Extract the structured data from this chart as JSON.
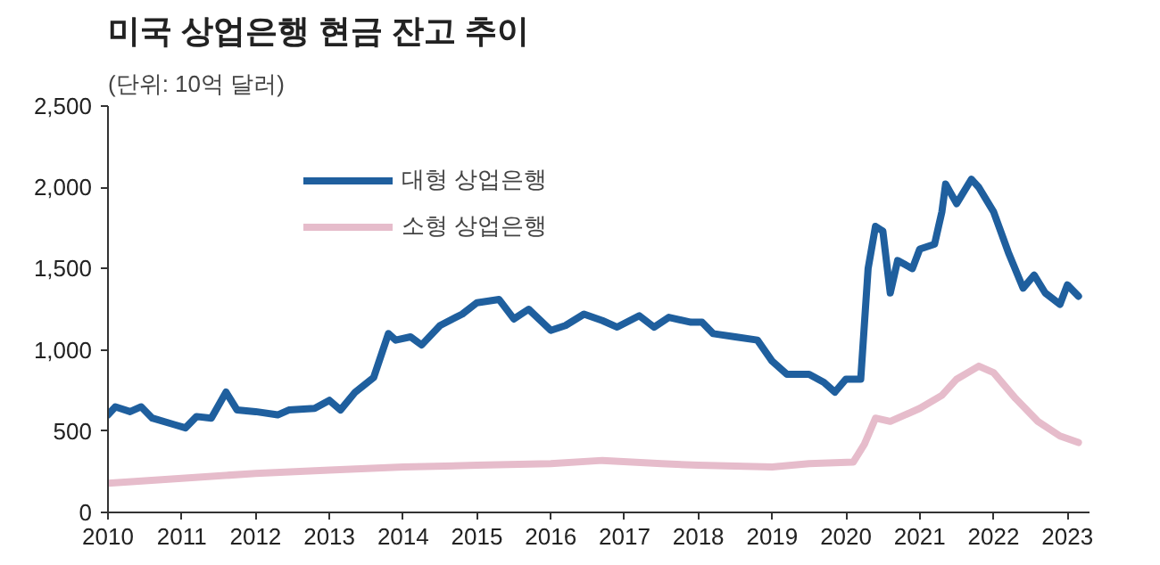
{
  "chart_data": {
    "type": "line",
    "title": "미국 상업은행 현금 잔고 추이",
    "subtitle": "(단위: 10억 달러)",
    "xlim": [
      2010,
      2023.3
    ],
    "xticks": [
      2010,
      2011,
      2012,
      2013,
      2014,
      2015,
      2016,
      2017,
      2018,
      2019,
      2020,
      2021,
      2022,
      2023
    ],
    "ylim": [
      0,
      2500
    ],
    "yticks": [
      0,
      {
        "value": 500,
        "label": "500"
      },
      {
        "value": 1000,
        "label": "1,000"
      },
      {
        "value": 1500,
        "label": "1,500"
      },
      {
        "value": 2000,
        "label": "2,000"
      },
      {
        "value": 2500,
        "label": "2,500"
      }
    ],
    "grid": false,
    "legend": "top left",
    "line_style": "solid",
    "series": [
      {
        "name": "대형 상업은행",
        "color": "#1f5f9e",
        "x": [
          2010.0,
          2010.1,
          2010.3,
          2010.45,
          2010.6,
          2010.9,
          2011.05,
          2011.2,
          2011.4,
          2011.6,
          2011.75,
          2012.0,
          2012.3,
          2012.45,
          2012.8,
          2013.0,
          2013.15,
          2013.35,
          2013.6,
          2013.8,
          2013.9,
          2014.1,
          2014.25,
          2014.5,
          2014.8,
          2015.0,
          2015.3,
          2015.5,
          2015.7,
          2016.0,
          2016.2,
          2016.45,
          2016.7,
          2016.9,
          2017.2,
          2017.4,
          2017.6,
          2017.9,
          2018.05,
          2018.2,
          2018.5,
          2018.8,
          2019.0,
          2019.2,
          2019.5,
          2019.7,
          2019.85,
          2020.0,
          2020.2,
          2020.3,
          2020.4,
          2020.5,
          2020.6,
          2020.7,
          2020.9,
          2021.0,
          2021.2,
          2021.3,
          2021.35,
          2021.5,
          2021.7,
          2021.8,
          2022.0,
          2022.2,
          2022.4,
          2022.55,
          2022.7,
          2022.9,
          2023.0,
          2023.15
        ],
        "values": [
          600,
          650,
          620,
          650,
          580,
          540,
          520,
          590,
          580,
          740,
          630,
          620,
          600,
          630,
          640,
          690,
          630,
          740,
          830,
          1100,
          1060,
          1080,
          1030,
          1150,
          1220,
          1290,
          1310,
          1190,
          1250,
          1120,
          1150,
          1220,
          1180,
          1140,
          1210,
          1140,
          1200,
          1170,
          1170,
          1100,
          1080,
          1060,
          930,
          850,
          850,
          800,
          740,
          820,
          820,
          1500,
          1760,
          1730,
          1350,
          1550,
          1500,
          1620,
          1650,
          1850,
          2020,
          1900,
          2050,
          2000,
          1850,
          1600,
          1380,
          1460,
          1350,
          1280,
          1400,
          1330
        ]
      },
      {
        "name": "소형 상업은행",
        "color": "#e6bccb",
        "x": [
          2010.0,
          2011.0,
          2012.0,
          2013.0,
          2014.0,
          2015.0,
          2016.0,
          2016.7,
          2017.5,
          2018.0,
          2019.0,
          2019.5,
          2020.1,
          2020.25,
          2020.4,
          2020.6,
          2021.0,
          2021.3,
          2021.5,
          2021.8,
          2022.0,
          2022.3,
          2022.6,
          2022.9,
          2023.15
        ],
        "values": [
          180,
          210,
          240,
          260,
          280,
          290,
          300,
          320,
          300,
          290,
          280,
          300,
          310,
          420,
          580,
          560,
          640,
          720,
          820,
          900,
          860,
          700,
          560,
          470,
          430
        ]
      }
    ]
  }
}
